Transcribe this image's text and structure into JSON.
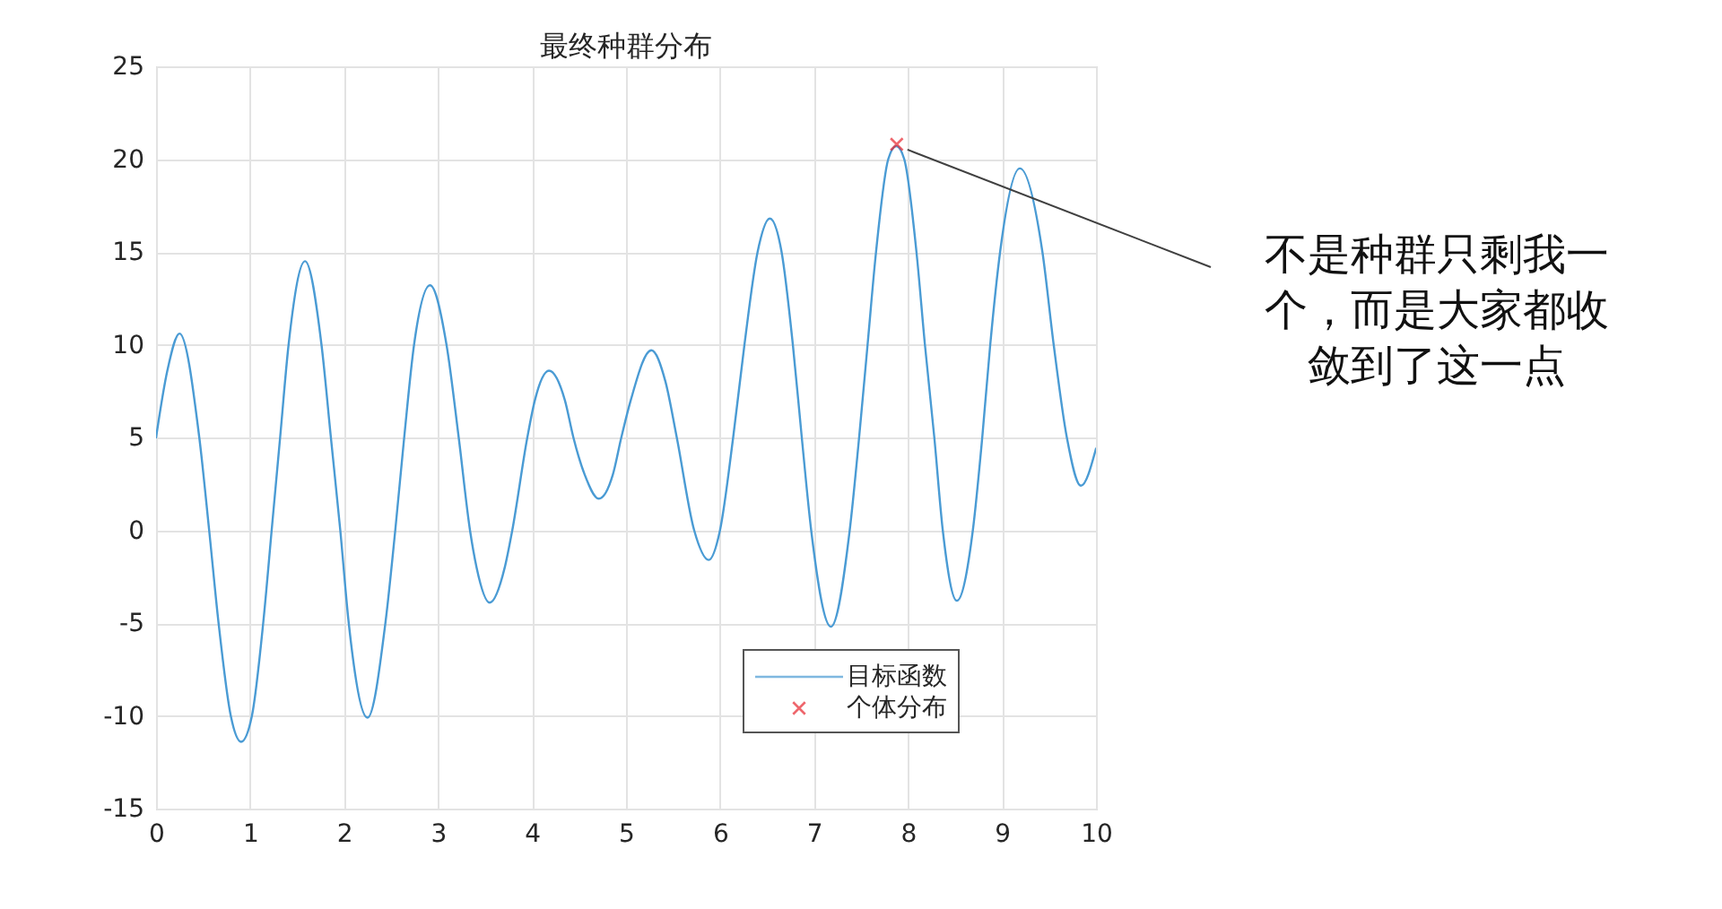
{
  "chart_data": {
    "type": "line",
    "title": "最终种群分布",
    "xlim": [
      0,
      10
    ],
    "xticks": [
      0,
      1,
      2,
      3,
      4,
      5,
      6,
      7,
      8,
      9,
      10
    ],
    "ylim": [
      -15,
      25
    ],
    "yticks": [
      -15,
      -10,
      -5,
      0,
      5,
      10,
      15,
      20,
      25
    ],
    "grid": true,
    "legend": "bottom",
    "series": [
      {
        "name": "目标函数",
        "color": "#4a9bd4",
        "marker": "none",
        "x": [
          0,
          0.12,
          0.25,
          0.46,
          0.565,
          0.665,
          0.795,
          0.905,
          1.02,
          1.14,
          1.23,
          1.32,
          1.41,
          1.585,
          1.76,
          1.86,
          1.96,
          2.05,
          2.25,
          2.44,
          2.545,
          2.64,
          2.745,
          2.915,
          3.09,
          3.22,
          3.34,
          3.41,
          3.55,
          3.71,
          3.79,
          3.95,
          4.03,
          4.18,
          4.35,
          4.44,
          4.56,
          4.71,
          4.86,
          4.95,
          5.05,
          5.27,
          5.42,
          5.54,
          5.725,
          5.88,
          6.0,
          6.14,
          6.26,
          6.4,
          6.53,
          6.655,
          6.775,
          6.87,
          6.97,
          7.18,
          7.38,
          7.48,
          7.57,
          7.66,
          7.79,
          7.875,
          7.96,
          8.09,
          8.18,
          8.28,
          8.37,
          8.52,
          8.69,
          8.79,
          8.875,
          8.98,
          9.19,
          9.43,
          9.55,
          9.69,
          9.84,
          10
        ],
        "values": [
          5.0,
          8.6,
          10.6,
          5.0,
          0,
          -5,
          -10,
          -11.4,
          -10,
          -5,
          0,
          5,
          10,
          14.5,
          10,
          5,
          0,
          -5,
          -10.1,
          -5,
          0,
          5,
          10,
          13.2,
          10,
          5,
          0,
          -2,
          -3.9,
          -2,
          0,
          5,
          7,
          8.6,
          7,
          5,
          3,
          1.7,
          3,
          5,
          7,
          9.7,
          8,
          5,
          0,
          -1.6,
          0,
          5,
          10,
          15,
          16.8,
          15,
          10,
          5,
          0,
          -5.2,
          0,
          5,
          10,
          15,
          20,
          20.7,
          20,
          15,
          10,
          5,
          0,
          -3.8,
          0,
          5,
          10,
          15,
          19.5,
          15,
          10,
          5,
          2.4,
          4.4
        ]
      },
      {
        "name": "个体分布",
        "type": "scatter",
        "color": "#e8262e",
        "marker": "cross",
        "x": [
          7.88
        ],
        "values": [
          20.8
        ]
      }
    ],
    "annotations": [
      {
        "text": "不是种群只剩我一个，而是大家都收敛到了这一点",
        "x": 7.88,
        "y": 20.8
      }
    ]
  }
}
